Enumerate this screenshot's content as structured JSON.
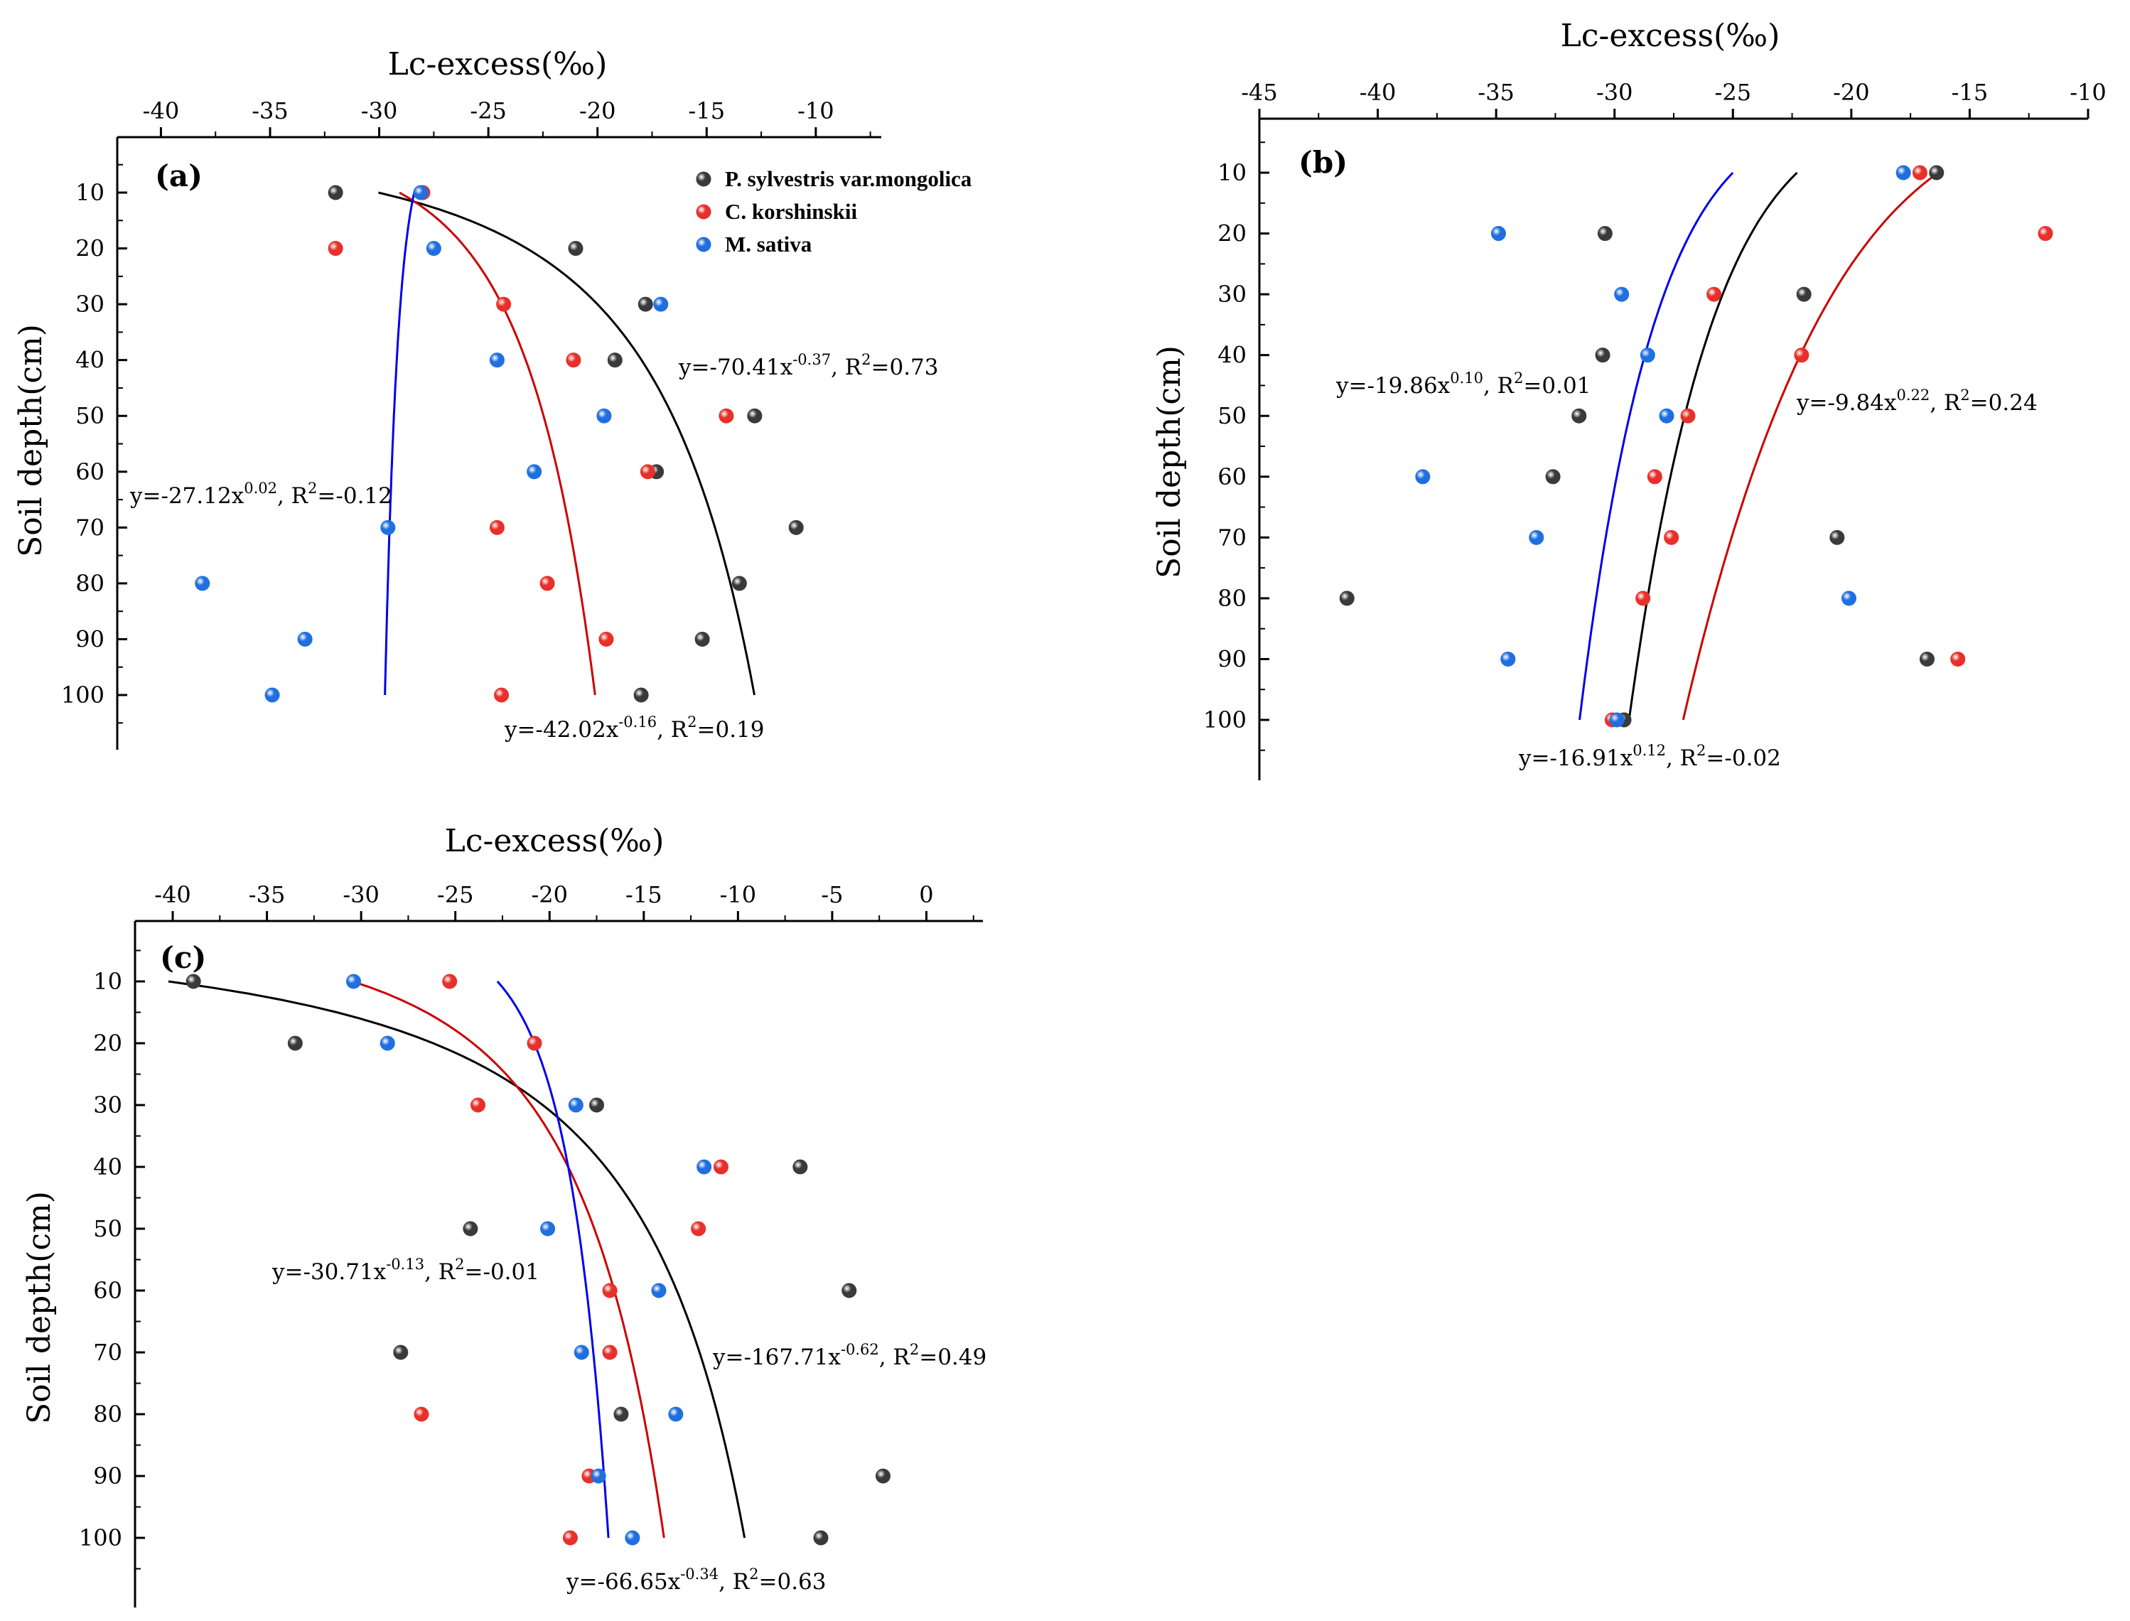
{
  "figure": {
    "legend": [
      {
        "name": "P. sylvestris var.mongolica",
        "color": "#3a3a3a"
      },
      {
        "name": "C. korshinskii",
        "color": "#e8302a"
      },
      {
        "name": "M. sativa",
        "color": "#1f6fe0"
      }
    ],
    "colors": {
      "p": "#3a3a3a",
      "c": "#e8302a",
      "m": "#1f6fe0",
      "p_fit": "#000000",
      "c_fit": "#cc0000",
      "m_fit": "#0000ee"
    }
  },
  "chart_data": [
    {
      "type": "scatter",
      "panel": "(a)",
      "xlabel": "Lc-excess(‰)",
      "ylabel": "Soil depth(cm)",
      "xlim": [
        -42,
        -7
      ],
      "ylim": [
        0,
        110
      ],
      "xticks": [
        -40,
        -35,
        -30,
        -25,
        -20,
        -15,
        -10
      ],
      "yticks": [
        10,
        20,
        30,
        40,
        50,
        60,
        70,
        80,
        90,
        100
      ],
      "show_legend": true,
      "series": [
        {
          "name": "P. sylvestris var.mongolica",
          "key": "p",
          "x": [
            -32,
            -21,
            -17.8,
            -19.2,
            -12.8,
            -17.3,
            -10.9,
            -13.5,
            -15.2,
            -18
          ],
          "y": [
            10,
            20,
            30,
            40,
            50,
            60,
            70,
            80,
            90,
            100
          ],
          "fit": {
            "a": -70.41,
            "b": -0.37,
            "equation": "y=-70.41x",
            "exponent": "-0.37",
            "r2": ", R",
            "r2_sup": "2",
            "r2_value": "=0.73"
          }
        },
        {
          "name": "C. korshinskii",
          "key": "c",
          "x": [
            -28,
            -32,
            -24.3,
            -21.1,
            -14.1,
            -17.7,
            -24.6,
            -22.3,
            -19.6,
            -24.4
          ],
          "y": [
            10,
            20,
            30,
            40,
            50,
            60,
            70,
            80,
            90,
            100
          ],
          "fit": {
            "a": -42.02,
            "b": -0.16,
            "equation": "y=-42.02x",
            "exponent": "-0.16",
            "r2": ", R",
            "r2_sup": "2",
            "r2_value": "=0.19"
          }
        },
        {
          "name": "M. sativa",
          "key": "m",
          "x": [
            -28.1,
            -27.5,
            -17.1,
            -24.6,
            -19.7,
            -22.9,
            -29.6,
            -38.1,
            -33.4,
            -34.9
          ],
          "y": [
            10,
            20,
            30,
            40,
            50,
            60,
            70,
            80,
            90,
            100
          ],
          "fit": {
            "a": -27.12,
            "b": 0.02,
            "equation": "y=-27.12x",
            "exponent": "0.02",
            "r2": ", R",
            "r2_sup": "2",
            "r2_value": "=-0.12"
          }
        }
      ]
    },
    {
      "type": "scatter",
      "panel": "(b)",
      "xlabel": "Lc-excess(‰)",
      "ylabel": "Soil depth(cm)",
      "xlim": [
        -45,
        -10
      ],
      "ylim": [
        0,
        110
      ],
      "xticks": [
        -45,
        -40,
        -35,
        -30,
        -25,
        -20,
        -15,
        -10
      ],
      "yticks": [
        10,
        20,
        30,
        40,
        50,
        60,
        70,
        80,
        90,
        100
      ],
      "show_legend": false,
      "series": [
        {
          "name": "P. sylvestris var.mongolica",
          "key": "p",
          "x": [
            -16.4,
            -30.4,
            -22,
            -30.5,
            -31.5,
            -32.6,
            -20.6,
            -41.3,
            -16.8,
            -29.6
          ],
          "y": [
            10,
            20,
            30,
            40,
            50,
            60,
            70,
            80,
            90,
            100
          ],
          "fit": {
            "a": -16.91,
            "b": 0.12,
            "equation": "y=-16.91x",
            "exponent": "0.12",
            "r2": ", R",
            "r2_sup": "2",
            "r2_value": "=-0.02"
          }
        },
        {
          "name": "C. korshinskii",
          "key": "c",
          "x": [
            -17.1,
            -11.8,
            -25.8,
            -22.1,
            -26.9,
            -28.3,
            -27.6,
            -28.8,
            -15.5,
            -30.1
          ],
          "y": [
            10,
            20,
            30,
            40,
            50,
            60,
            70,
            80,
            90,
            100
          ],
          "fit": {
            "a": -9.84,
            "b": 0.22,
            "equation": "y=-9.84x",
            "exponent": "0.22",
            "r2": ", R",
            "r2_sup": "2",
            "r2_value": "=0.24"
          }
        },
        {
          "name": "M. sativa",
          "key": "m",
          "x": [
            -17.8,
            -34.9,
            -29.7,
            -28.6,
            -27.8,
            -38.1,
            -33.3,
            -20.1,
            -34.5,
            -29.9
          ],
          "y": [
            10,
            20,
            30,
            40,
            50,
            60,
            70,
            80,
            90,
            100
          ],
          "fit": {
            "a": -19.86,
            "b": 0.1,
            "equation": "y=-19.86x",
            "exponent": "0.10",
            "r2": ", R",
            "r2_sup": "2",
            "r2_value": "=0.01"
          }
        }
      ]
    },
    {
      "type": "scatter",
      "panel": "(c)",
      "xlabel": "Lc-excess(‰)",
      "ylabel": "Soil depth(cm)",
      "xlim": [
        -42,
        3
      ],
      "ylim": [
        0,
        110
      ],
      "xticks": [
        -40,
        -35,
        -30,
        -25,
        -20,
        -15,
        -10,
        -5,
        0
      ],
      "yticks": [
        10,
        20,
        30,
        40,
        50,
        60,
        70,
        80,
        90,
        100
      ],
      "show_legend": false,
      "series": [
        {
          "name": "P. sylvestris var.mongolica",
          "key": "p",
          "x": [
            -38.9,
            -33.5,
            -17.5,
            -6.7,
            -24.2,
            -4.1,
            -27.9,
            -16.2,
            -2.3,
            -5.6
          ],
          "y": [
            10,
            20,
            30,
            40,
            50,
            60,
            70,
            80,
            90,
            100
          ],
          "fit": {
            "a": -167.71,
            "b": -0.62,
            "equation": "y=-167.71x",
            "exponent": "-0.62",
            "r2": ", R",
            "r2_sup": "2",
            "r2_value": "=0.49"
          }
        },
        {
          "name": "C. korshinskii",
          "key": "c",
          "x": [
            -25.3,
            -20.8,
            -23.8,
            -10.9,
            -12.1,
            -16.8,
            -16.8,
            -26.8,
            -17.9,
            -18.9
          ],
          "y": [
            10,
            20,
            30,
            40,
            50,
            60,
            70,
            80,
            90,
            100
          ],
          "fit": {
            "a": -66.65,
            "b": -0.34,
            "equation": "y=-66.65x",
            "exponent": "-0.34",
            "r2": ", R",
            "r2_sup": "2",
            "r2_value": "=0.63"
          }
        },
        {
          "name": "M. sativa",
          "key": "m",
          "x": [
            -30.4,
            -28.6,
            -18.6,
            -11.8,
            -20.1,
            -14.2,
            -18.3,
            -13.3,
            -17.4,
            -15.6
          ],
          "y": [
            10,
            20,
            30,
            40,
            50,
            60,
            70,
            80,
            90,
            100
          ],
          "fit": {
            "a": -30.71,
            "b": -0.13,
            "equation": "y=-30.71x",
            "exponent": "-0.13",
            "r2": ", R",
            "r2_sup": "2",
            "r2_value": "=-0.01"
          }
        }
      ]
    }
  ]
}
